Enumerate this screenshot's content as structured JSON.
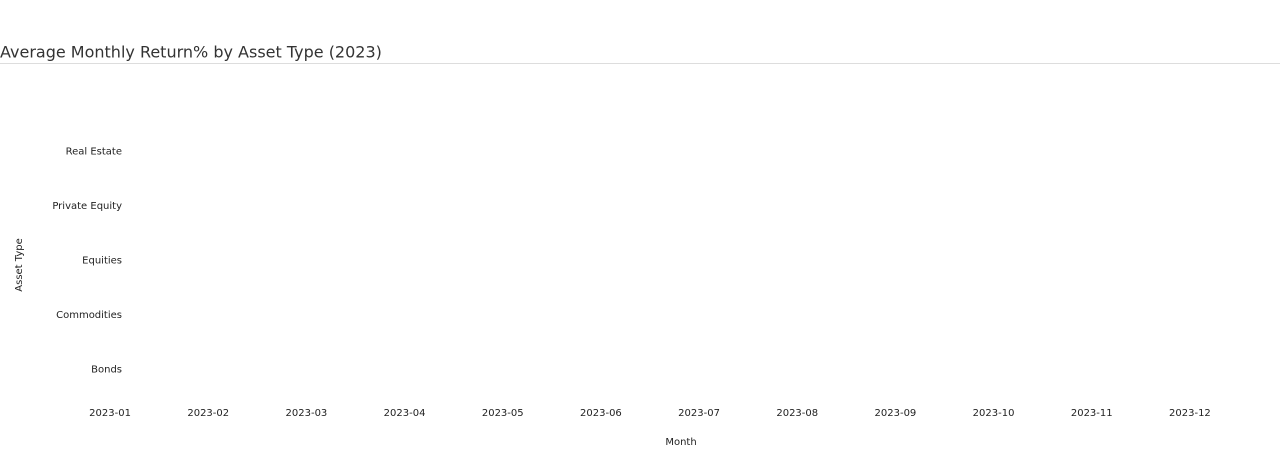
{
  "chart_data": {
    "type": "heatmap",
    "title": "Average Monthly Return% by Asset Type (2023)",
    "x_label": "Month",
    "y_label": "Asset Type",
    "x": [
      "2023-01",
      "2023-02",
      "2023-03",
      "2023-04",
      "2023-05",
      "2023-06",
      "2023-07",
      "2023-08",
      "2023-09",
      "2023-10",
      "2023-11",
      "2023-12"
    ],
    "y": [
      "Bonds",
      "Commodities",
      "Equities",
      "Private Equity",
      "Real Estate"
    ]
  }
}
